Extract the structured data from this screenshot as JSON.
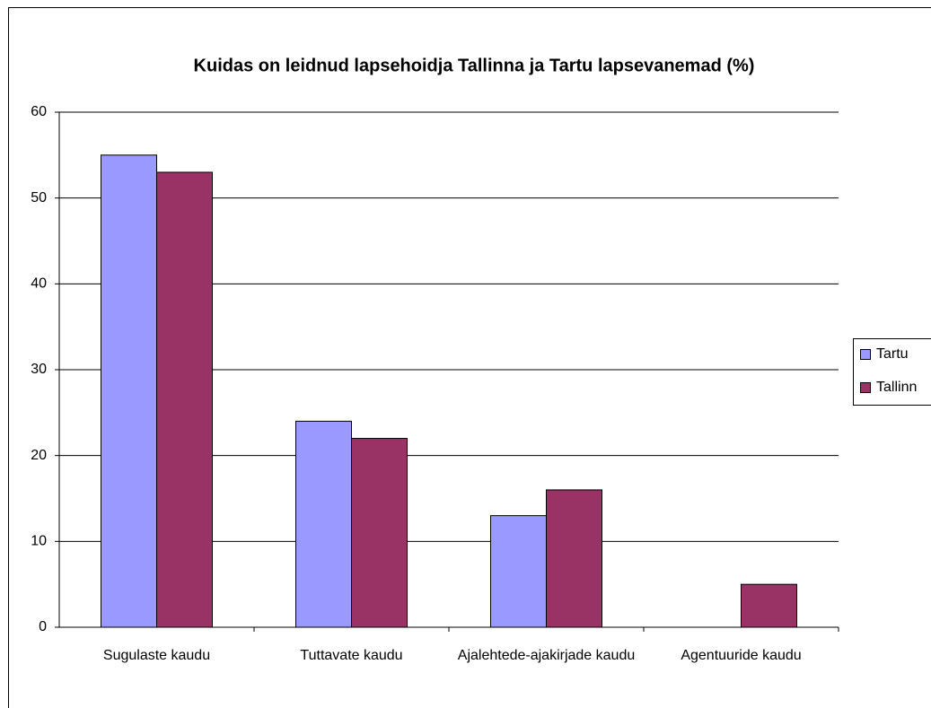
{
  "chart_data": {
    "type": "bar",
    "title": "Kuidas on leidnud lapsehoidja Tallinna ja Tartu lapsevanemad (%)",
    "categories": [
      "Sugulaste kaudu",
      "Tuttavate kaudu",
      "Ajalehtede-ajakirjade kaudu",
      "Agentuuride kaudu"
    ],
    "series": [
      {
        "name": "Tartu",
        "color": "#9999ff",
        "values": [
          55,
          24,
          13,
          0
        ]
      },
      {
        "name": "Tallinn",
        "color": "#993366",
        "values": [
          53,
          22,
          16,
          5
        ]
      }
    ],
    "ylim": [
      0,
      60
    ],
    "yticks": [
      0,
      10,
      20,
      30,
      40,
      50,
      60
    ],
    "grid": true,
    "legend": "right"
  }
}
